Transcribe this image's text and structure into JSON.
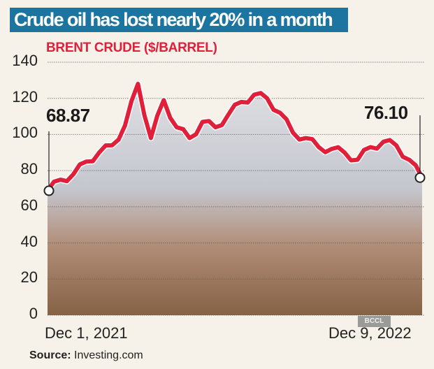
{
  "header": {
    "title": "Crude oil has lost nearly 20% in a month",
    "subtitle": "BRENT CRUDE ($/BARREL)"
  },
  "footer": {
    "source_label": "Source:",
    "source_value": "Investing.com",
    "photo_credit": "BCCL"
  },
  "callouts": {
    "start_value": "68.87",
    "end_value": "76.10"
  },
  "colors": {
    "title_bg": "#1b75a0",
    "line": "#e0203a",
    "background": "#f7f2e9"
  },
  "chart_data": {
    "type": "line",
    "title": "Crude oil has lost nearly 20% in a month",
    "subtitle": "BRENT CRUDE ($/BARREL)",
    "xlabel": "",
    "ylabel": "$/barrel",
    "ylim": [
      0,
      140
    ],
    "yticks": [
      0,
      20,
      40,
      60,
      80,
      100,
      120,
      140
    ],
    "xtick_labels": [
      "Dec 1, 2021",
      "Dec 9, 2022"
    ],
    "grid": true,
    "legend": null,
    "annotations": [
      {
        "label": "68.87",
        "x": "Dec 1, 2021",
        "y": 68.87
      },
      {
        "label": "76.10",
        "x": "Dec 9, 2022",
        "y": 76.1
      }
    ],
    "series": [
      {
        "name": "Brent crude",
        "x": [
          "2021-12-01",
          "2021-12-15",
          "2022-01-01",
          "2022-01-15",
          "2022-02-01",
          "2022-02-15",
          "2022-03-01",
          "2022-03-08",
          "2022-03-16",
          "2022-03-24",
          "2022-04-01",
          "2022-04-11",
          "2022-04-20",
          "2022-05-01",
          "2022-05-15",
          "2022-06-01",
          "2022-06-08",
          "2022-06-15",
          "2022-07-01",
          "2022-07-15",
          "2022-08-01",
          "2022-08-15",
          "2022-09-01",
          "2022-09-15",
          "2022-10-01",
          "2022-10-15",
          "2022-11-01",
          "2022-11-15",
          "2022-12-01",
          "2022-12-09"
        ],
        "values": [
          68.87,
          75,
          78,
          85,
          90,
          94,
          105,
          128,
          98,
          119,
          104,
          98,
          107,
          104,
          111,
          118,
          122,
          120,
          112,
          101,
          98,
          93,
          92,
          90,
          86,
          93,
          96,
          94,
          86,
          76.1
        ]
      }
    ],
    "source": "Investing.com"
  }
}
